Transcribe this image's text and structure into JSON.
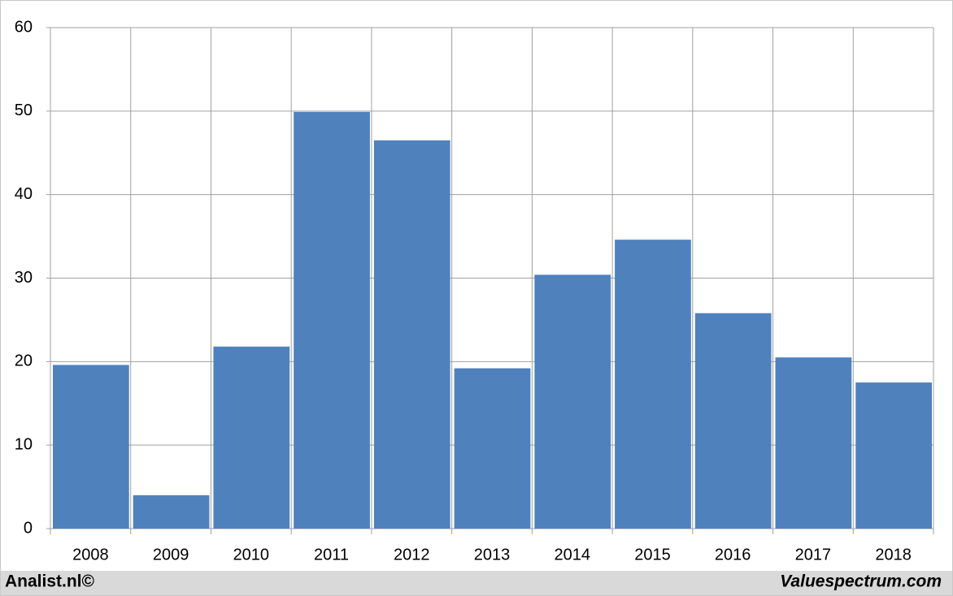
{
  "chart_data": {
    "type": "bar",
    "categories": [
      "2008",
      "2009",
      "2010",
      "2011",
      "2012",
      "2013",
      "2014",
      "2015",
      "2016",
      "2017",
      "2018"
    ],
    "values": [
      19.6,
      4.0,
      21.8,
      49.9,
      46.5,
      19.2,
      30.4,
      34.6,
      25.8,
      20.5,
      17.5
    ],
    "color": "#4f81bd",
    "ylim": [
      0,
      60
    ],
    "yticks": [
      0,
      10,
      20,
      30,
      40,
      50,
      60
    ],
    "grid": true
  },
  "footer": {
    "left": "Analist.nl©",
    "right": "Valuespectrum.com"
  }
}
